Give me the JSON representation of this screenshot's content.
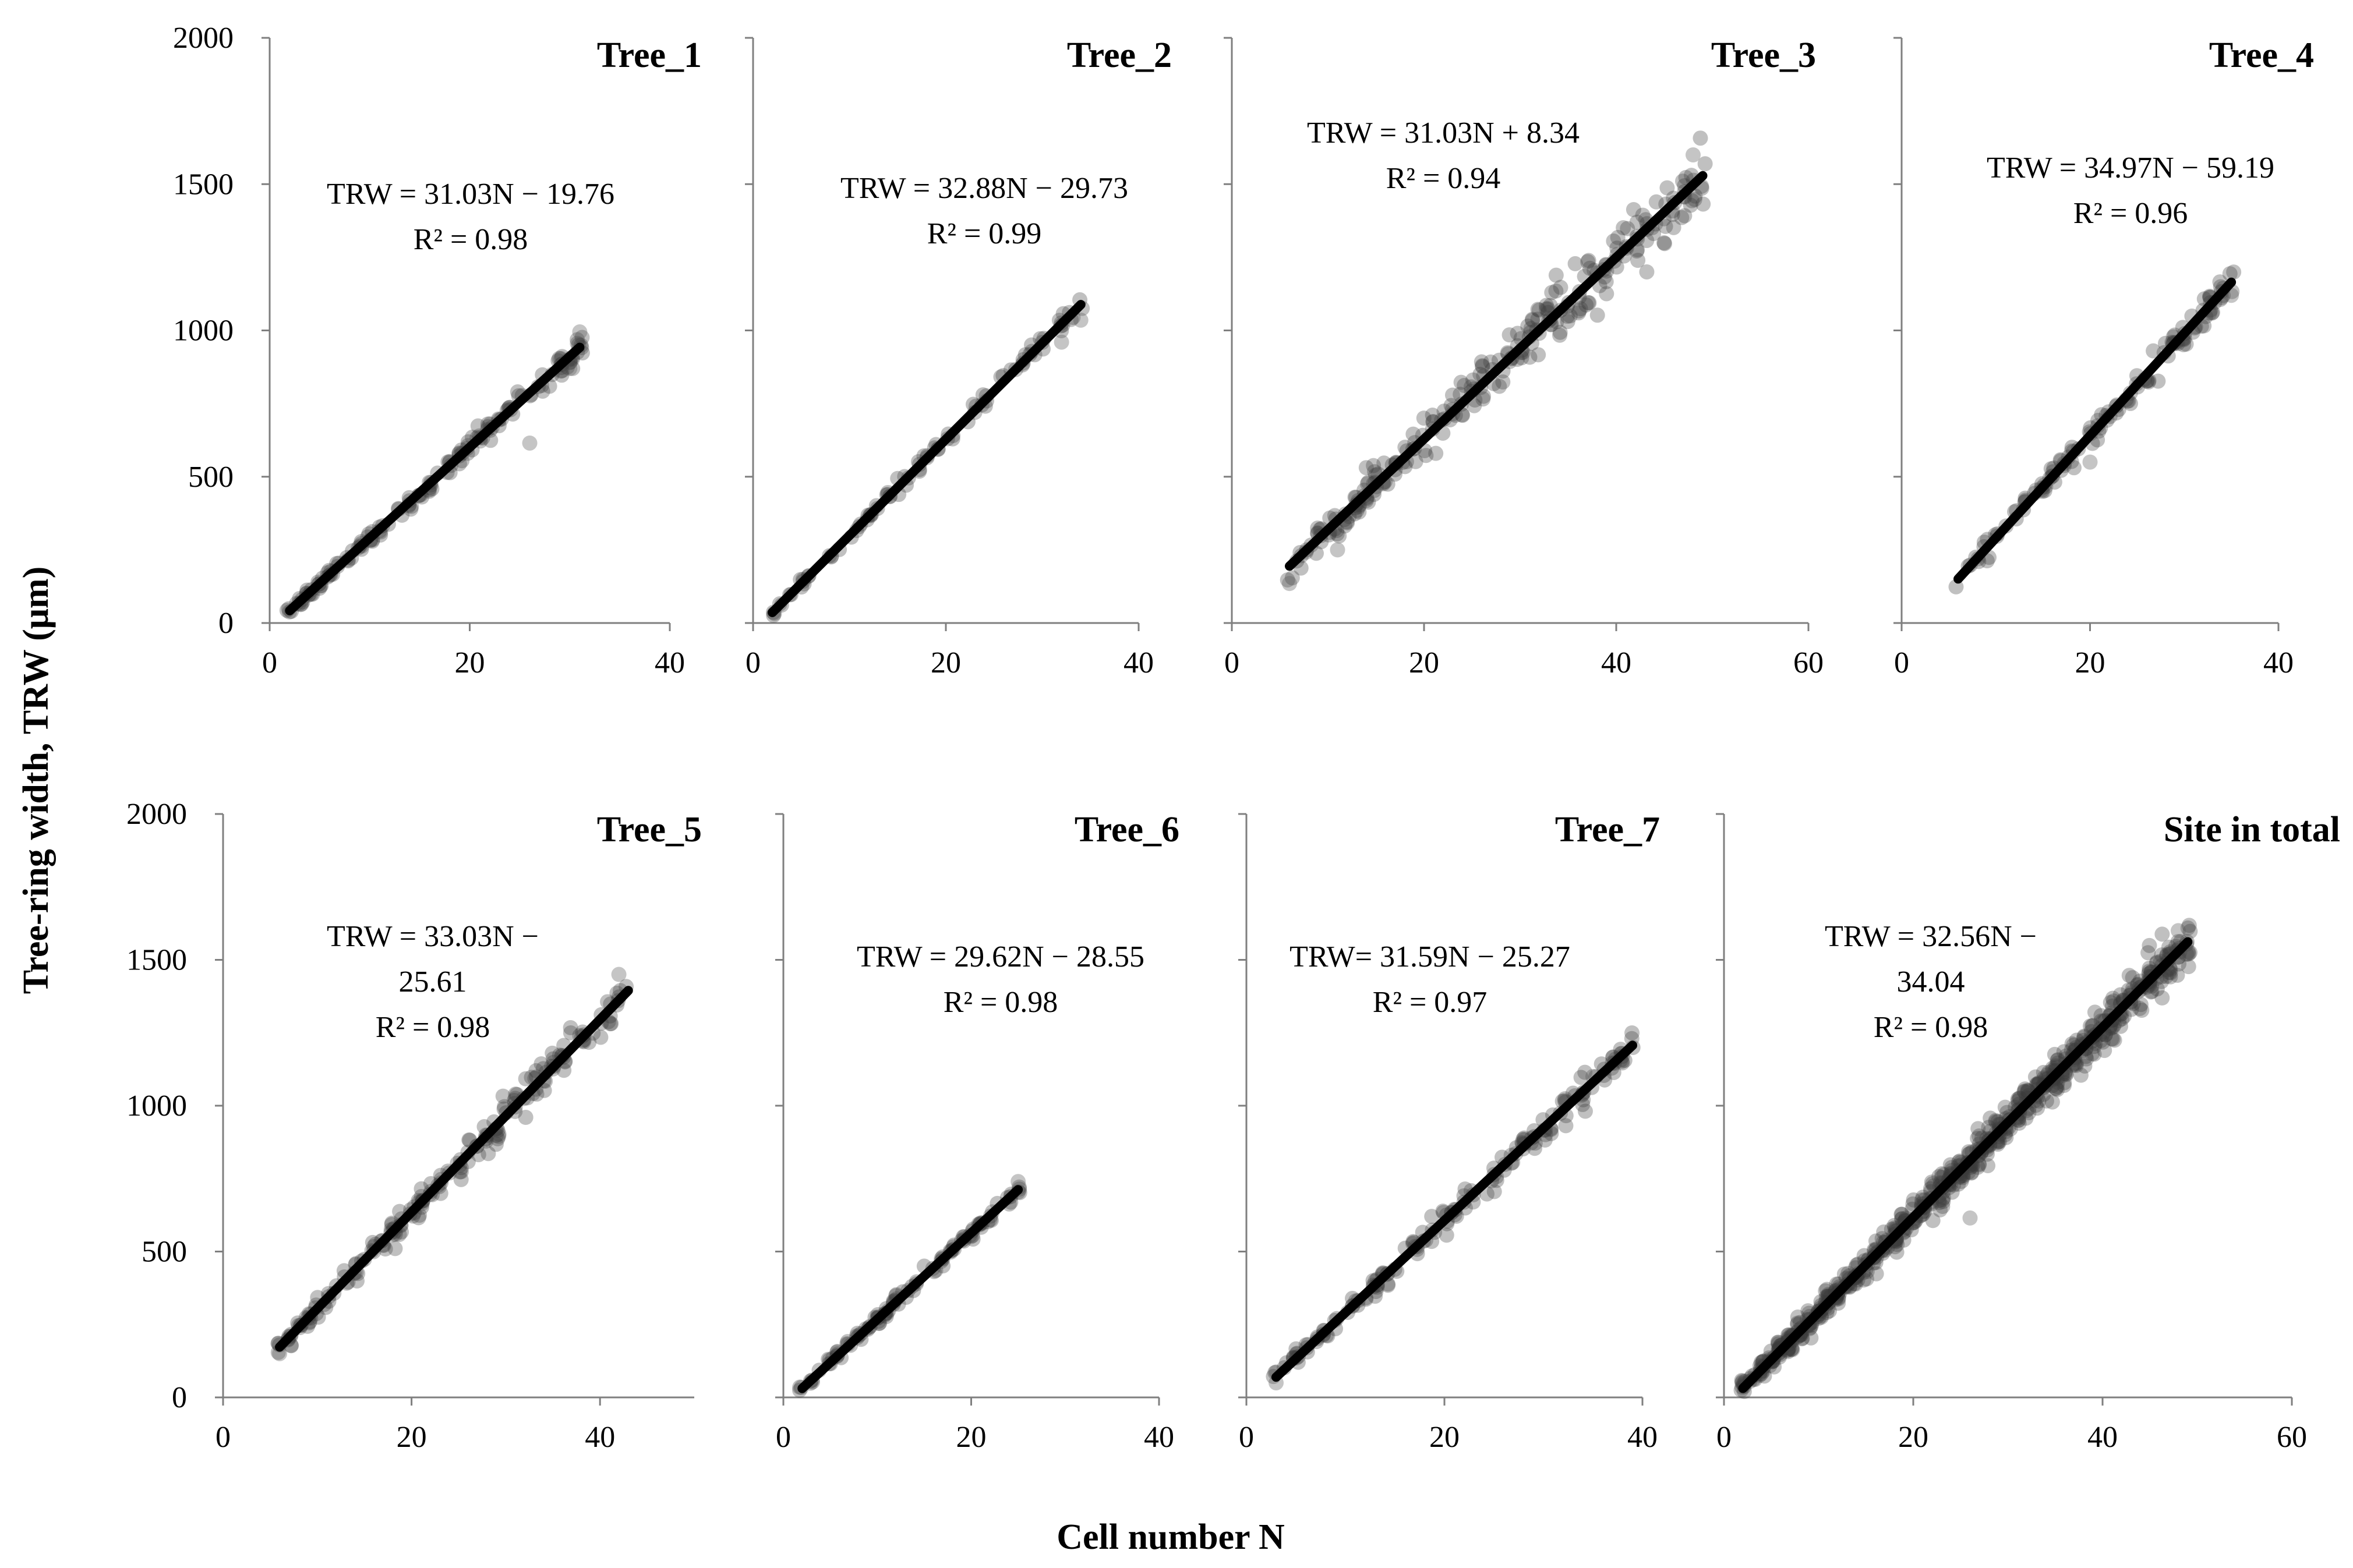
{
  "figure": {
    "ylabel": "Tree-ring width, TRW (μm)",
    "xlabel": "Cell number N"
  },
  "chart_data": [
    {
      "type": "scatter",
      "title": "Tree_1",
      "equation": [
        "TRW = 31.03N − 19.76",
        "R² = 0.98"
      ],
      "fit": {
        "slope": 31.03,
        "intercept": -19.76,
        "r2": 0.98,
        "x_range": [
          2,
          31
        ]
      },
      "scatter_points": {
        "x_range": [
          2,
          31
        ],
        "count": 160,
        "spread": 22,
        "extra_points": [
          [
            26,
            615
          ],
          [
            31,
            995
          ],
          [
            30,
            870
          ]
        ]
      },
      "xlim": [
        0,
        40
      ],
      "xticks": [
        0,
        20,
        40
      ],
      "ylim": [
        0,
        2000
      ],
      "yticks": [
        0,
        500,
        1000,
        1500,
        2000
      ]
    },
    {
      "type": "scatter",
      "title": "Tree_2",
      "equation": [
        "TRW = 32.88N − 29.73",
        "R² = 0.99"
      ],
      "fit": {
        "slope": 32.88,
        "intercept": -29.73,
        "r2": 0.99,
        "x_range": [
          2,
          34
        ]
      },
      "scatter_points": {
        "x_range": [
          2,
          34
        ],
        "count": 90,
        "spread": 22,
        "extra_points": [
          [
            34,
            1035
          ],
          [
            32,
            960
          ]
        ]
      },
      "xlim": [
        0,
        40
      ],
      "xticks": [
        0,
        20,
        40
      ],
      "ylim": [
        0,
        2000
      ],
      "yticks": [
        0,
        500,
        1000,
        1500,
        2000
      ]
    },
    {
      "type": "scatter",
      "title": "Tree_3",
      "equation": [
        "TRW = 31.03N + 8.34",
        "R² = 0.94"
      ],
      "fit": {
        "slope": 31.03,
        "intercept": 8.34,
        "r2": 0.94,
        "x_range": [
          6,
          49
        ]
      },
      "scatter_points": {
        "x_range": [
          6,
          49
        ],
        "count": 260,
        "spread": 65,
        "extra_points": [
          [
            48,
            1600
          ],
          [
            6,
            135
          ],
          [
            11,
            250
          ]
        ]
      },
      "xlim": [
        0,
        60
      ],
      "xticks": [
        0,
        20,
        40,
        60
      ],
      "ylim": [
        0,
        2000
      ],
      "yticks": [
        0,
        500,
        1000,
        1500,
        2000
      ]
    },
    {
      "type": "scatter",
      "title": "Tree_4",
      "equation": [
        "TRW = 34.97N − 59.19",
        "R² = 0.96"
      ],
      "fit": {
        "slope": 34.97,
        "intercept": -59.19,
        "r2": 0.96,
        "x_range": [
          6,
          35
        ]
      },
      "scatter_points": {
        "x_range": [
          6,
          35
        ],
        "count": 130,
        "spread": 32,
        "extra_points": [
          [
            35,
            1120
          ],
          [
            20,
            550
          ]
        ]
      },
      "xlim": [
        0,
        40
      ],
      "xticks": [
        0,
        20,
        40
      ],
      "ylim": [
        0,
        2000
      ],
      "yticks": [
        0,
        500,
        1000,
        1500,
        2000
      ]
    },
    {
      "type": "scatter",
      "title": "Tree_5",
      "equation": [
        "TRW = 33.03N −",
        "25.61",
        "R² = 0.98"
      ],
      "fit": {
        "slope": 33.03,
        "intercept": -25.61,
        "r2": 0.98,
        "x_range": [
          6,
          43
        ]
      },
      "scatter_points": {
        "x_range": [
          6,
          43
        ],
        "count": 200,
        "spread": 35,
        "extra_points": [
          [
            42,
            1450
          ],
          [
            6,
            150
          ]
        ]
      },
      "xlim": [
        0,
        50
      ],
      "xticks": [
        0,
        20,
        40
      ],
      "ylim": [
        0,
        2000
      ],
      "yticks": [
        0,
        500,
        1000,
        1500,
        2000
      ]
    },
    {
      "type": "scatter",
      "title": "Tree_6",
      "equation": [
        "TRW = 29.62N − 28.55",
        "R² = 0.98"
      ],
      "fit": {
        "slope": 29.62,
        "intercept": -28.55,
        "r2": 0.98,
        "x_range": [
          2,
          25
        ]
      },
      "scatter_points": {
        "x_range": [
          2,
          25
        ],
        "count": 110,
        "spread": 16,
        "extra_points": [
          [
            25,
            740
          ]
        ]
      },
      "xlim": [
        0,
        40
      ],
      "xticks": [
        0,
        20,
        40
      ],
      "ylim": [
        0,
        2000
      ],
      "yticks": [
        0,
        500,
        1000,
        1500,
        2000
      ]
    },
    {
      "type": "scatter",
      "title": "Tree_7",
      "equation": [
        "TRW= 31.59N − 25.27",
        "R² = 0.97"
      ],
      "fit": {
        "slope": 31.59,
        "intercept": -25.27,
        "r2": 0.97,
        "x_range": [
          3,
          39
        ]
      },
      "scatter_points": {
        "x_range": [
          3,
          39
        ],
        "count": 170,
        "spread": 35,
        "extra_points": [
          [
            3,
            50
          ],
          [
            35,
            1100
          ]
        ]
      },
      "xlim": [
        0,
        40
      ],
      "xticks": [
        0,
        20,
        40
      ],
      "ylim": [
        0,
        2000
      ],
      "yticks": [
        0,
        500,
        1000,
        1500,
        2000
      ]
    },
    {
      "type": "scatter",
      "title": "Site in total",
      "equation": [
        "TRW = 32.56N −",
        "34.04",
        "R² = 0.98"
      ],
      "fit": {
        "slope": 32.56,
        "intercept": -34.04,
        "r2": 0.98,
        "x_range": [
          2,
          49
        ]
      },
      "scatter_points": {
        "x_range": [
          2,
          49
        ],
        "count": 700,
        "spread": 45,
        "extra_points": [
          [
            48,
            1600
          ],
          [
            26,
            615
          ],
          [
            49,
            1520
          ]
        ]
      },
      "xlim": [
        0,
        60
      ],
      "xticks": [
        0,
        20,
        40,
        60
      ],
      "ylim": [
        0,
        2000
      ],
      "yticks": [
        0,
        500,
        1000,
        1500,
        2000
      ]
    }
  ]
}
